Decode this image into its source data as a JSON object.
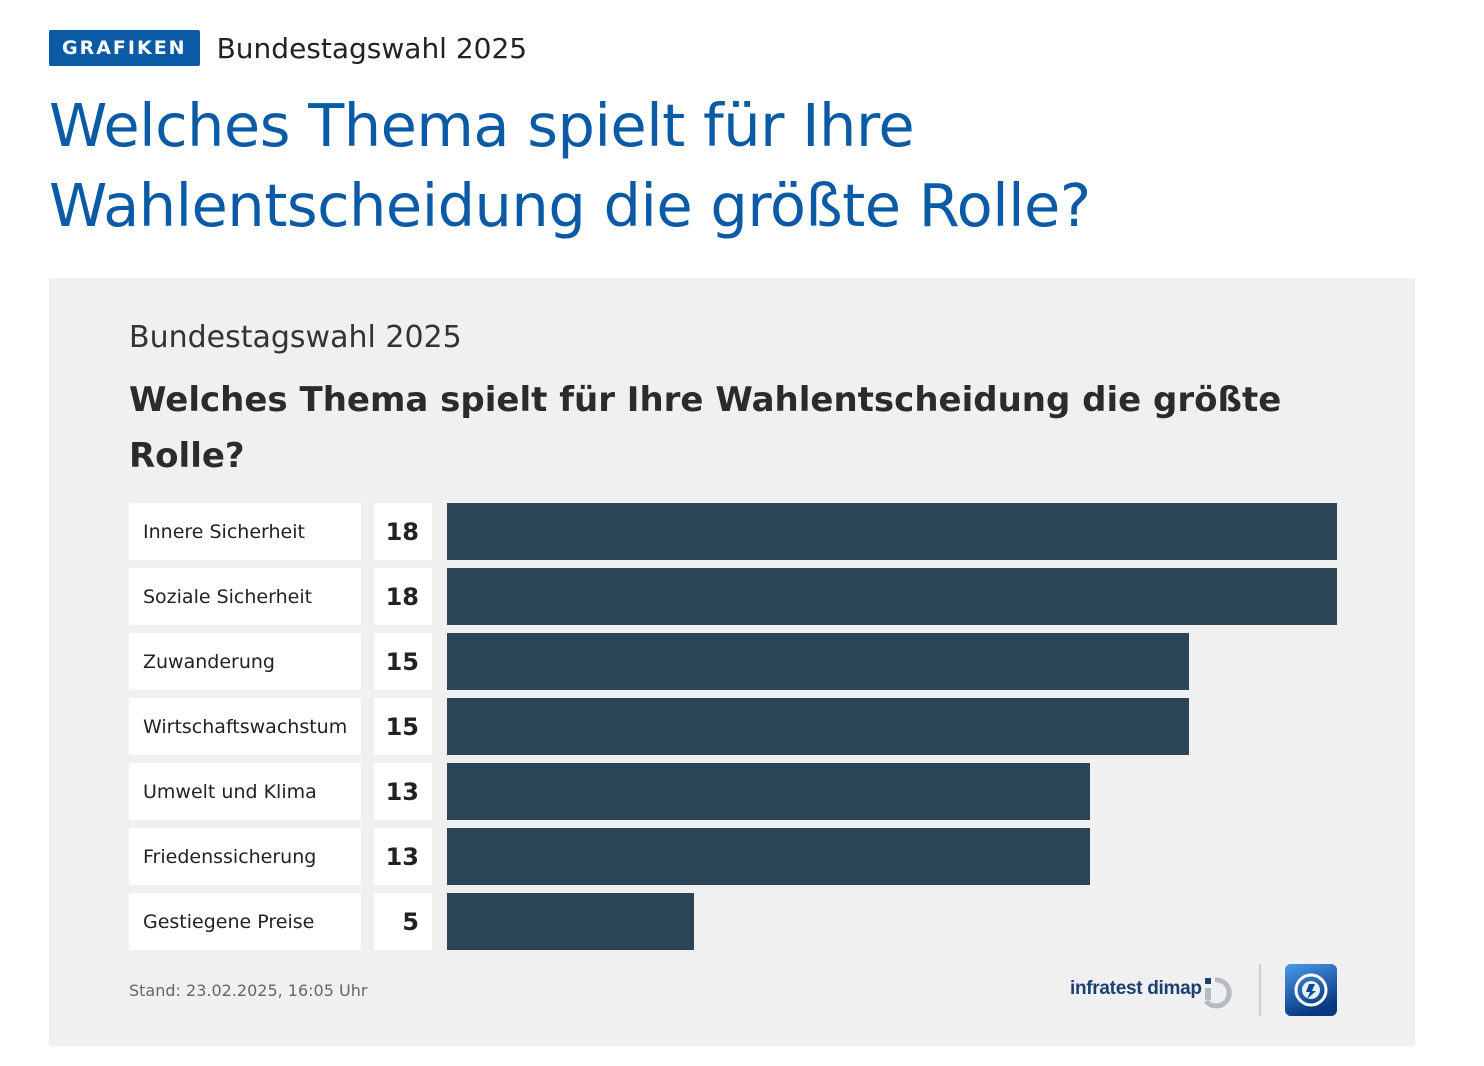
{
  "header": {
    "tag": "GRAFIKEN",
    "kicker": "Bundestagswahl 2025",
    "headline": "Welches Thema spielt für Ihre Wahlentscheidung die größte Rolle?"
  },
  "chart_data": {
    "type": "bar",
    "orientation": "horizontal",
    "subtitle": "Bundestagswahl 2025",
    "title": "Welches Thema spielt für Ihre Wahlentscheidung die größte Rolle?",
    "categories": [
      "Innere Sicherheit",
      "Soziale Sicherheit",
      "Zuwanderung",
      "Wirtschaftswachstum",
      "Umwelt und Klima",
      "Friedenssicherung",
      "Gestiegene Preise"
    ],
    "values": [
      18,
      18,
      15,
      15,
      13,
      13,
      5
    ],
    "xlim": [
      0,
      18
    ],
    "bar_color": "#2c4556",
    "grid": false
  },
  "footer": {
    "stand": "Stand:  23.02.2025, 16:05 Uhr",
    "source_logo": "infratest dimap",
    "source_icon": "infratest-dimap-icon",
    "broadcaster_icon": "tagesschau-icon"
  },
  "colors": {
    "accent": "#0b5aa6",
    "panel": "#f0f0f0",
    "bar": "#2c4556"
  }
}
